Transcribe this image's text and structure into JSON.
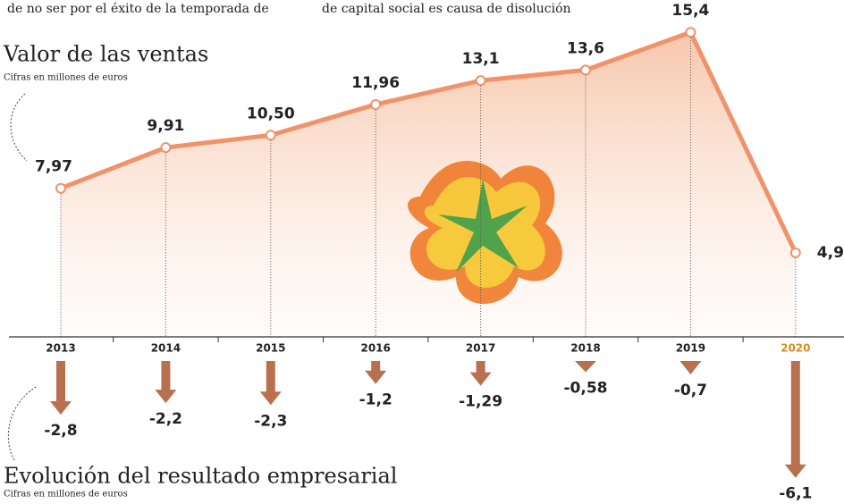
{
  "article_text": [
    "de no ser por el éxito de la temporada de",
    "de capital social es causa de disolución"
  ],
  "chart_data": [
    {
      "type": "line",
      "title": "Valor de las ventas",
      "subtitle": "Cifras en millones de euros",
      "categories": [
        "2013",
        "2014",
        "2015",
        "2016",
        "2017",
        "2018",
        "2019",
        "2020"
      ],
      "category_label_colors": [
        "#222222",
        "#222222",
        "#222222",
        "#222222",
        "#222222",
        "#222222",
        "#222222",
        "#d98c1e"
      ],
      "values": [
        7.97,
        9.91,
        10.5,
        11.96,
        13.1,
        13.6,
        15.4,
        4.9
      ],
      "value_labels": [
        "7,97",
        "9,91",
        "10,50",
        "11,96",
        "13,1",
        "13,6",
        "15,4",
        "4,9"
      ],
      "color": "#f0926a",
      "ylim": [
        0,
        16
      ]
    },
    {
      "type": "arrow",
      "title": "Evolución del resultado empresarial",
      "subtitle": "Cifras en millones de euros",
      "values": [
        -2.8,
        -2.2,
        -2.3,
        -1.2,
        -1.29,
        -0.58,
        -0.7,
        -6.1
      ],
      "value_labels": [
        "-2,8",
        "-2,2",
        "-2,3",
        "-1,2",
        "-1,29",
        "-0,58",
        "-0,7",
        "-6,1"
      ],
      "color": "#b8704f",
      "ylim": [
        -7,
        0
      ]
    }
  ]
}
